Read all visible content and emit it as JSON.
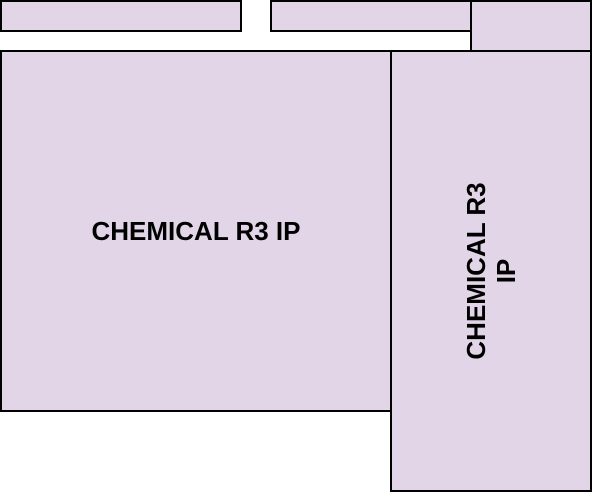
{
  "colors": {
    "block_fill": "#e1d5e7",
    "block_stroke": "#000000",
    "text": "#000000"
  },
  "main_block": {
    "label": "CHEMICAL R3 IP"
  },
  "side_block": {
    "label_line1": "CHEMICAL R3",
    "label_line2": "IP"
  }
}
